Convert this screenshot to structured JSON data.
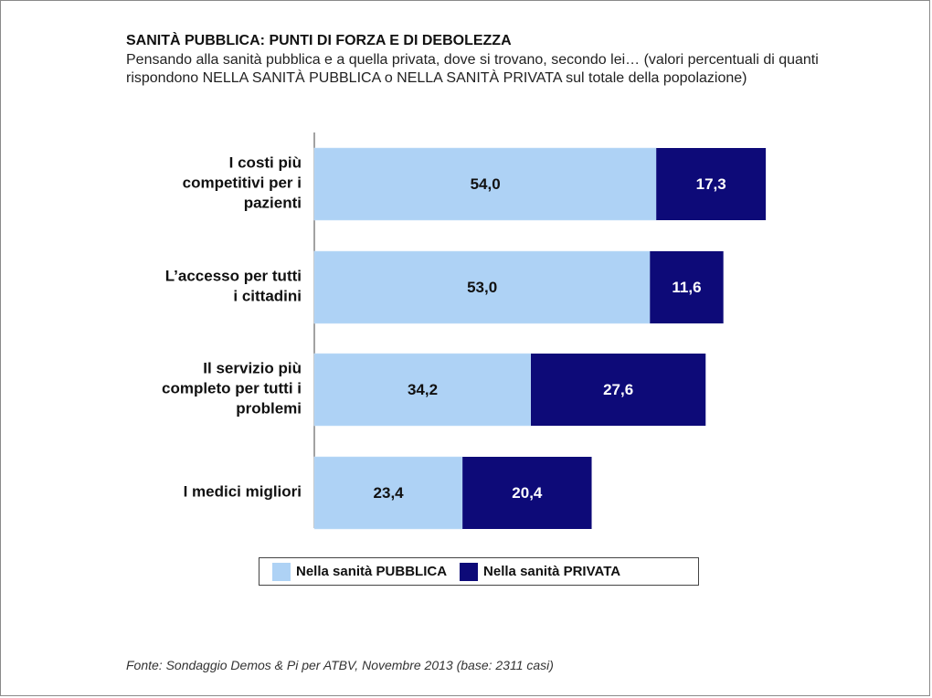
{
  "colors": {
    "pubblica": "#aed2f5",
    "privata": "#0d0a78",
    "label_pubblica": "#111111",
    "label_privata": "#ffffff"
  },
  "source": "Fonte: Sondaggio Demos & Pi per ATBV, Novembre 2013 (base: 2311 casi)",
  "chart_data": {
    "type": "bar",
    "orientation": "horizontal",
    "stacked": true,
    "title": "SANITÀ PUBBLICA: PUNTI DI FORZA E DI DEBOLEZZA",
    "subtitle": "Pensando alla sanità pubblica e a quella privata, dove si trovano, secondo lei… (valori percentuali di quanti rispondono NELLA SANITÀ PUBBLICA o NELLA SANITÀ PRIVATA sul totale della popolazione)",
    "categories": [
      [
        "I costi più",
        "competitivi per i",
        "pazienti"
      ],
      [
        "L’accesso per tutti",
        "i cittadini"
      ],
      [
        "Il servizio più",
        "completo per tutti i",
        "problemi"
      ],
      [
        "I medici migliori"
      ]
    ],
    "series": [
      {
        "name": "Nella sanità PUBBLICA",
        "values": [
          54.0,
          53.0,
          34.2,
          23.4
        ],
        "labels": [
          "54,0",
          "53,0",
          "34,2",
          "23,4"
        ]
      },
      {
        "name": "Nella sanità PRIVATA",
        "values": [
          17.3,
          11.6,
          27.6,
          20.4
        ],
        "labels": [
          "17,3",
          "11,6",
          "27,6",
          "20,4"
        ]
      }
    ],
    "xlim": [
      0,
      100
    ],
    "grid": false,
    "legend": "bottom-center"
  }
}
